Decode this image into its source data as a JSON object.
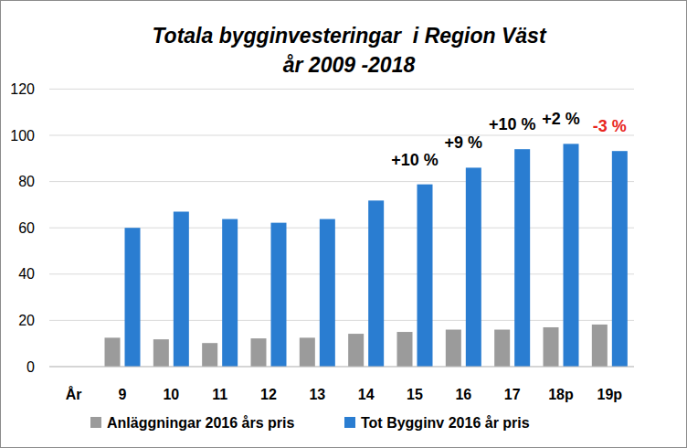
{
  "chart_data": {
    "type": "bar",
    "title": "Totala bygginvesteringar  i Region Väst",
    "subtitle": "år 2009 -2018",
    "categories": [
      "År",
      "9",
      "10",
      "11",
      "12",
      "13",
      "14",
      "15",
      "16",
      "17",
      "18p",
      "19p"
    ],
    "series": [
      {
        "name": "Anläggningar 2016 års pris",
        "color": "#9b9b9b",
        "values": [
          null,
          12.5,
          11.8,
          10.2,
          12.2,
          12.5,
          14.2,
          15,
          16,
          16,
          17,
          18.2
        ]
      },
      {
        "name": "Tot Bygginv 2016 år pris",
        "color": "#2a7dd1",
        "values": [
          null,
          60,
          67,
          63.8,
          62.2,
          63.8,
          71.8,
          78.8,
          86,
          94,
          96.3,
          93.2
        ]
      }
    ],
    "annotations": [
      {
        "text": "+10 %",
        "category": "15",
        "color": "#000000"
      },
      {
        "text": "+9 %",
        "category": "16",
        "color": "#000000"
      },
      {
        "text": "+10 %",
        "category": "17",
        "color": "#000000"
      },
      {
        "text": "+2 %",
        "category": "18p",
        "color": "#000000"
      },
      {
        "text": "-3 %",
        "category": "19p",
        "color": "#e8261e"
      }
    ],
    "ylim": [
      0,
      120
    ],
    "yticks": [
      0,
      20,
      40,
      60,
      80,
      100,
      120
    ],
    "grid": true,
    "legend": "bottom"
  }
}
